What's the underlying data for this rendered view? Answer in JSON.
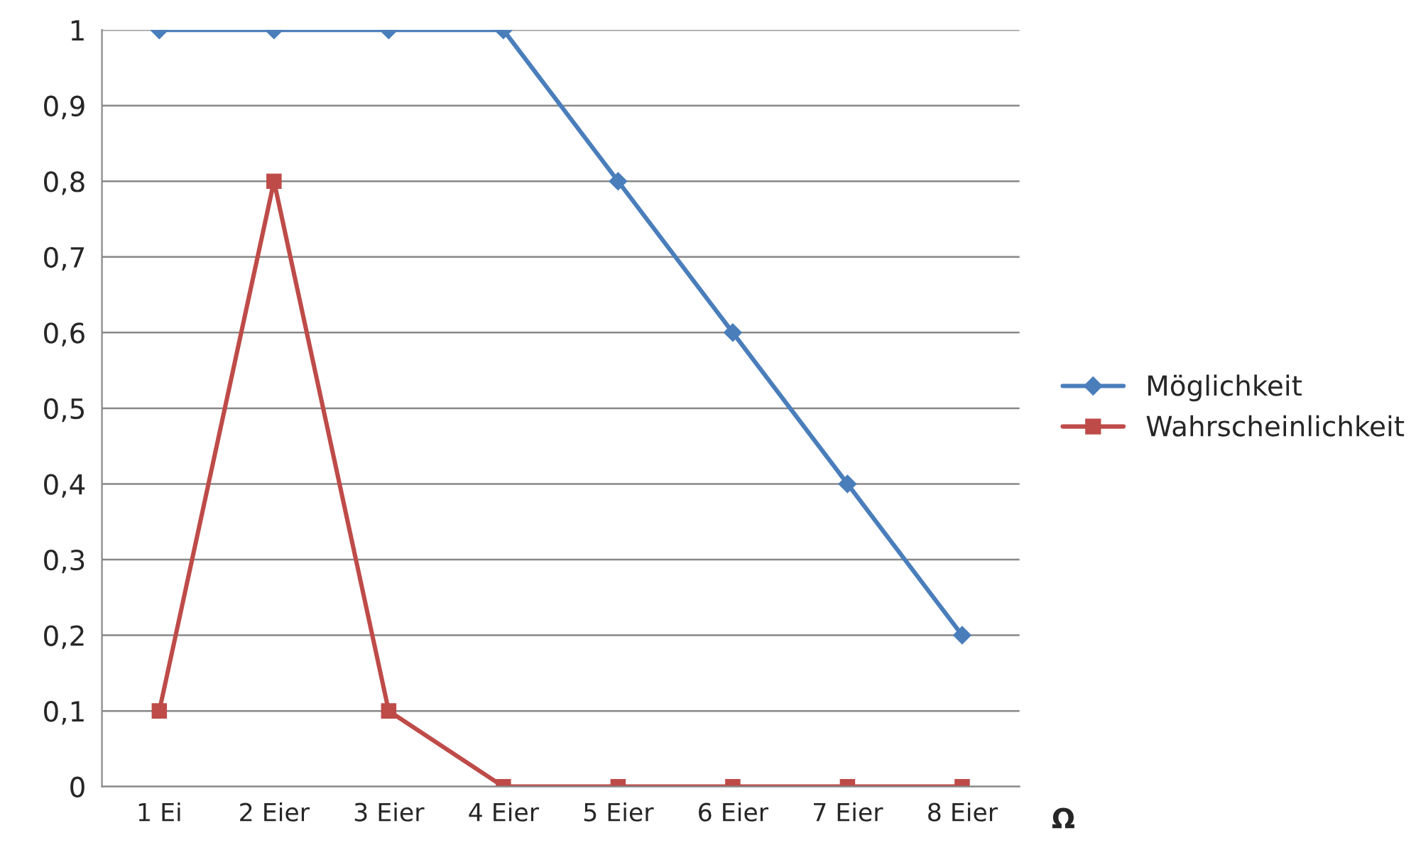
{
  "chart_data": {
    "type": "line",
    "xlabel": "Ω",
    "categories": [
      "1 Ei",
      "2 Eier",
      "3 Eier",
      "4 Eier",
      "5 Eier",
      "6 Eier",
      "7 Eier",
      "8 Eier"
    ],
    "series": [
      {
        "name": "Möglichkeit",
        "color": "#4a7ebb",
        "marker": "diamond",
        "values": [
          1,
          1,
          1,
          1,
          0.8,
          0.6,
          0.4,
          0.2
        ]
      },
      {
        "name": "Wahrscheinlichkeit",
        "color": "#be4b48",
        "marker": "square",
        "values": [
          0.1,
          0.8,
          0.1,
          0,
          0,
          0,
          0,
          0
        ]
      }
    ],
    "ylim": [
      0,
      1
    ],
    "yticks": [
      0,
      {
        "value": 0.1,
        "label": "0,1"
      },
      {
        "value": 0.2,
        "label": "0,2"
      },
      {
        "value": 0.3,
        "label": "0,3"
      },
      {
        "value": 0.4,
        "label": "0,4"
      },
      {
        "value": 0.5,
        "label": "0,5"
      },
      {
        "value": 0.6,
        "label": "0,6"
      },
      {
        "value": 0.7,
        "label": "0,7"
      },
      {
        "value": 0.8,
        "label": "0,8"
      },
      {
        "value": 0.9,
        "label": "0,9"
      },
      1
    ],
    "grid": "y",
    "legend": "right",
    "line_style": "solid"
  }
}
